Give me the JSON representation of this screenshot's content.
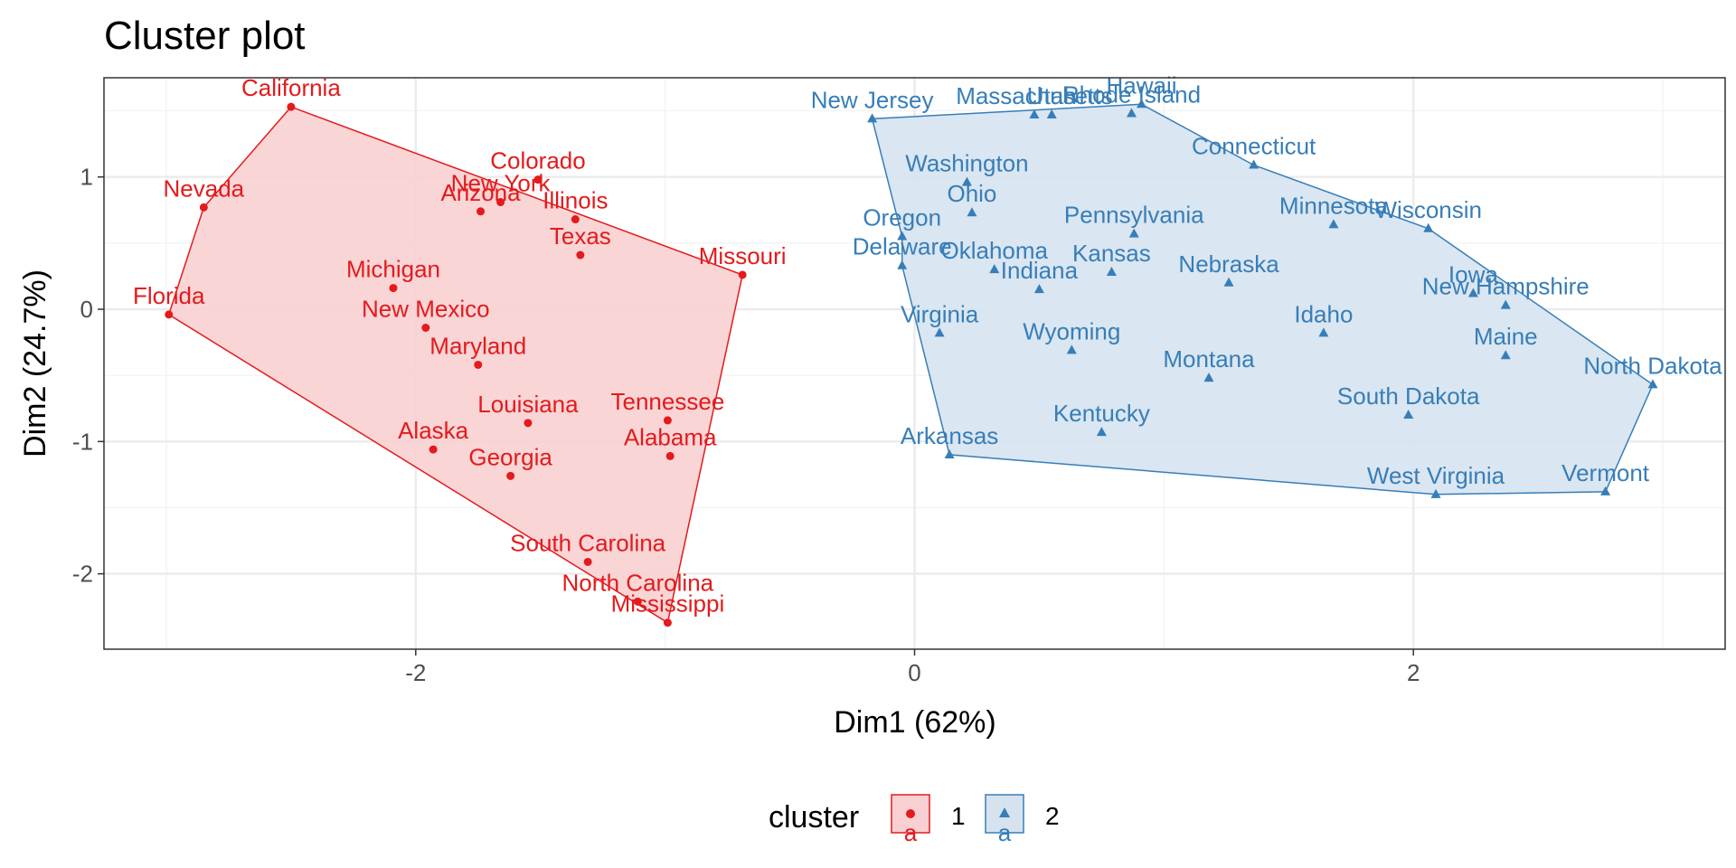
{
  "chart_data": {
    "type": "scatter",
    "title": "Cluster plot",
    "xlabel": "Dim1 (62%)",
    "ylabel": "Dim2 (24.7%)",
    "xlim": [
      -3.25,
      3.25
    ],
    "ylim": [
      -2.57,
      1.75
    ],
    "x_ticks": [
      -2,
      0,
      2
    ],
    "x_tick_labels": [
      "-2",
      "0",
      "2"
    ],
    "y_ticks": [
      -2,
      -1,
      0,
      1
    ],
    "y_tick_labels": [
      "-2",
      "-1",
      "0",
      "1"
    ],
    "legend_title": "cluster",
    "legend_position": "bottom",
    "legend_key_text": "a",
    "colors": {
      "1": "#e41a1c",
      "2": "#377eb8"
    },
    "fills": {
      "1": "#f8d0d2",
      "2": "#d6e3ef"
    },
    "series": [
      {
        "name": "1",
        "marker": "circle",
        "points": [
          {
            "label": "California",
            "x": -2.5,
            "y": 1.53
          },
          {
            "label": "Nevada",
            "x": -2.85,
            "y": 0.77
          },
          {
            "label": "Florida",
            "x": -2.99,
            "y": -0.04
          },
          {
            "label": "Colorado",
            "x": -1.51,
            "y": 0.98
          },
          {
            "label": "New York",
            "x": -1.66,
            "y": 0.81
          },
          {
            "label": "Arizona",
            "x": -1.74,
            "y": 0.74
          },
          {
            "label": "Illinois",
            "x": -1.36,
            "y": 0.68
          },
          {
            "label": "Texas",
            "x": -1.34,
            "y": 0.41
          },
          {
            "label": "Missouri",
            "x": -0.69,
            "y": 0.26
          },
          {
            "label": "Michigan",
            "x": -2.09,
            "y": 0.16
          },
          {
            "label": "New Mexico",
            "x": -1.96,
            "y": -0.14
          },
          {
            "label": "Maryland",
            "x": -1.75,
            "y": -0.42
          },
          {
            "label": "Louisiana",
            "x": -1.55,
            "y": -0.86
          },
          {
            "label": "Tennessee",
            "x": -0.99,
            "y": -0.84
          },
          {
            "label": "Alaska",
            "x": -1.93,
            "y": -1.06
          },
          {
            "label": "Alabama",
            "x": -0.98,
            "y": -1.11
          },
          {
            "label": "Georgia",
            "x": -1.62,
            "y": -1.26
          },
          {
            "label": "South Carolina",
            "x": -1.31,
            "y": -1.91
          },
          {
            "label": "North Carolina",
            "x": -1.11,
            "y": -2.21
          },
          {
            "label": "Mississippi",
            "x": -0.99,
            "y": -2.37
          }
        ],
        "hull": [
          "California",
          "Missouri",
          "Mississippi",
          "Florida",
          "Nevada"
        ]
      },
      {
        "name": "2",
        "marker": "triangle",
        "points": [
          {
            "label": "New Jersey",
            "x": -0.17,
            "y": 1.44
          },
          {
            "label": "Massachusetts",
            "x": 0.48,
            "y": 1.47
          },
          {
            "label": "Utah",
            "x": 0.55,
            "y": 1.47
          },
          {
            "label": "Rhode Island",
            "x": 0.87,
            "y": 1.48
          },
          {
            "label": "Hawaii",
            "x": 0.91,
            "y": 1.55
          },
          {
            "label": "Connecticut",
            "x": 1.36,
            "y": 1.09
          },
          {
            "label": "Washington",
            "x": 0.21,
            "y": 0.96
          },
          {
            "label": "Ohio",
            "x": 0.23,
            "y": 0.73
          },
          {
            "label": "Minnesota",
            "x": 1.68,
            "y": 0.64
          },
          {
            "label": "Wisconsin",
            "x": 2.06,
            "y": 0.61
          },
          {
            "label": "Pennsylvania",
            "x": 0.88,
            "y": 0.57
          },
          {
            "label": "Oregon",
            "x": -0.05,
            "y": 0.55
          },
          {
            "label": "Delaware",
            "x": -0.05,
            "y": 0.33
          },
          {
            "label": "Oklahoma",
            "x": 0.32,
            "y": 0.3
          },
          {
            "label": "Kansas",
            "x": 0.79,
            "y": 0.28
          },
          {
            "label": "Indiana",
            "x": 0.5,
            "y": 0.15
          },
          {
            "label": "Nebraska",
            "x": 1.26,
            "y": 0.2
          },
          {
            "label": "Iowa",
            "x": 2.24,
            "y": 0.12
          },
          {
            "label": "New Hampshire",
            "x": 2.37,
            "y": 0.03
          },
          {
            "label": "Virginia",
            "x": 0.1,
            "y": -0.18
          },
          {
            "label": "Idaho",
            "x": 1.64,
            "y": -0.18
          },
          {
            "label": "Wyoming",
            "x": 0.63,
            "y": -0.31
          },
          {
            "label": "Maine",
            "x": 2.37,
            "y": -0.35
          },
          {
            "label": "Montana",
            "x": 1.18,
            "y": -0.52
          },
          {
            "label": "North Dakota",
            "x": 2.96,
            "y": -0.57
          },
          {
            "label": "South Dakota",
            "x": 1.98,
            "y": -0.8
          },
          {
            "label": "Kentucky",
            "x": 0.75,
            "y": -0.93
          },
          {
            "label": "Arkansas",
            "x": 0.14,
            "y": -1.1
          },
          {
            "label": "West Virginia",
            "x": 2.09,
            "y": -1.4
          },
          {
            "label": "Vermont",
            "x": 2.77,
            "y": -1.38
          }
        ],
        "hull": [
          "New Jersey",
          "Hawaii",
          "Connecticut",
          "Wisconsin",
          "North Dakota",
          "Vermont",
          "West Virginia",
          "Arkansas",
          "Delaware",
          "Oregon"
        ]
      }
    ]
  }
}
